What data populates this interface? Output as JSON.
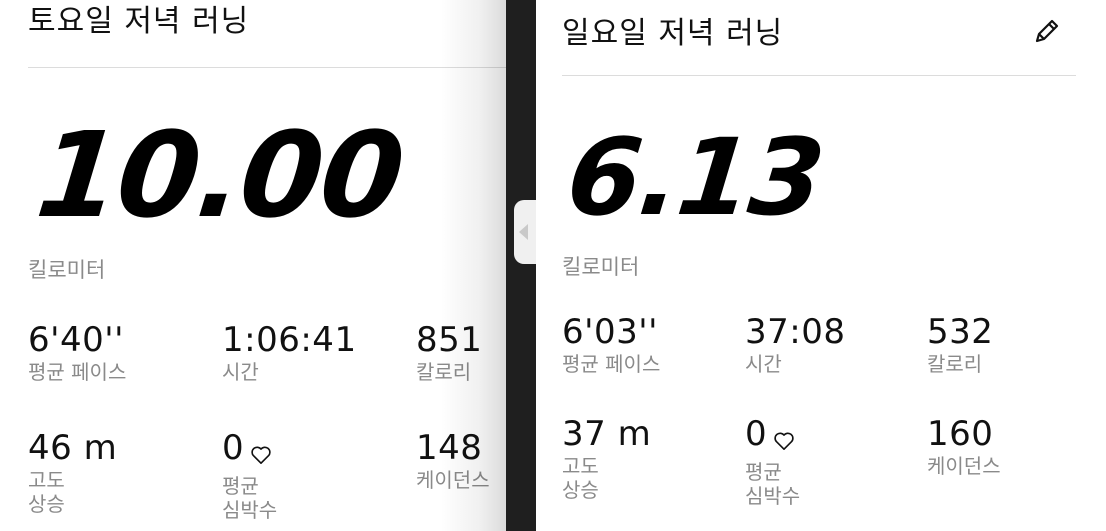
{
  "left": {
    "title": "토요일 저녁 러닝",
    "distance": "10.00",
    "distance_unit": "킬로미터",
    "pace_value": "6'40''",
    "pace_label": "평균 페이스",
    "time_value": "1:06:41",
    "time_label": "시간",
    "calories_value": "851",
    "calories_label": "칼로리",
    "elevation_value": "46 m",
    "elevation_label_1": "고도",
    "elevation_label_2": "상승",
    "heart_value": "0",
    "heart_label_1": "평균",
    "heart_label_2": "심박수",
    "cadence_value": "148",
    "cadence_label": "케이던스"
  },
  "right": {
    "title": "일요일 저녁 러닝",
    "distance": "6.13",
    "distance_unit": "킬로미터",
    "pace_value": "6'03''",
    "pace_label": "평균 페이스",
    "time_value": "37:08",
    "time_label": "시간",
    "calories_value": "532",
    "calories_label": "칼로리",
    "elevation_value": "37 m",
    "elevation_label_1": "고도",
    "elevation_label_2": "상승",
    "heart_value": "0",
    "heart_label_1": "평균",
    "heart_label_2": "심박수",
    "cadence_value": "160",
    "cadence_label": "케이던스"
  },
  "icons": {
    "edit": "pencil-icon",
    "heart": "heart-outline-icon",
    "divider_handle": "chevron-left-icon"
  },
  "colors": {
    "background": "#ffffff",
    "text": "#111111",
    "secondary_text": "#8a8a8a",
    "divider": "#1f1f1f"
  }
}
